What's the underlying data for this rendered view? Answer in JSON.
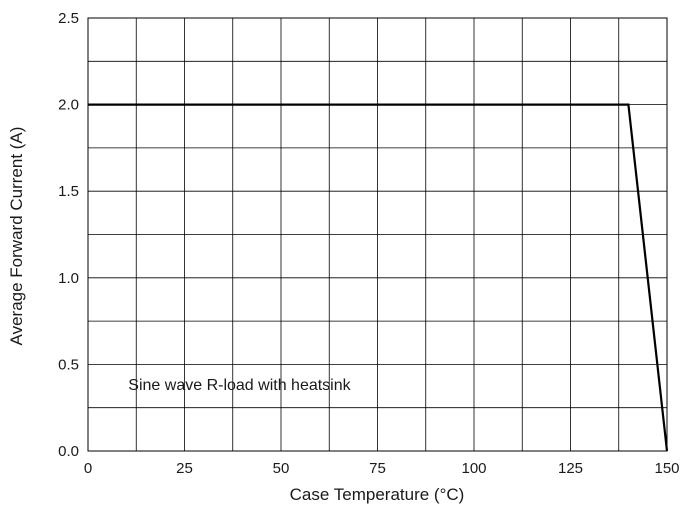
{
  "chart_data": {
    "type": "line",
    "xlabel": "Case Temperature (°C)",
    "ylabel": "Average Forward Current (A)",
    "xlim": [
      0,
      150
    ],
    "ylim": [
      0,
      2.5
    ],
    "x_ticks": [
      0,
      25,
      50,
      75,
      100,
      125,
      150
    ],
    "x_tick_labels": [
      "0",
      "25",
      "50",
      "75",
      "100",
      "125",
      "150"
    ],
    "y_ticks": [
      0,
      0.5,
      1.0,
      1.5,
      2.0,
      2.5
    ],
    "y_tick_labels": [
      "0.0",
      "0.5",
      "1.0",
      "1.5",
      "2.0",
      "2.5"
    ],
    "grid": true,
    "x_minor_step": 12.5,
    "y_minor_step": 0.25,
    "series": [
      {
        "x": [
          0,
          140,
          150
        ],
        "y": [
          2.0,
          2.0,
          0.0
        ],
        "color": "#000000"
      }
    ],
    "annotation": "Sine wave R-load with heatsink",
    "annotation_anchor": [
      5,
      0.38
    ]
  }
}
